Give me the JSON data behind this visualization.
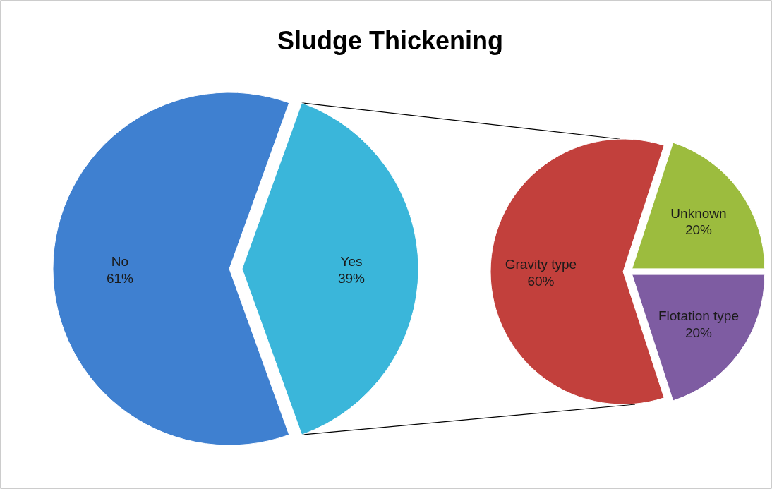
{
  "chart_data": [
    {
      "type": "pie",
      "title": "Sludge Thickening",
      "categories": [
        "No",
        "Yes"
      ],
      "values": [
        61,
        39
      ],
      "value_labels": [
        "61%",
        "39%"
      ],
      "colors": [
        "#3f80d0",
        "#3ab6da"
      ]
    },
    {
      "type": "pie",
      "categories": [
        "Gravity type",
        "Unknown",
        "Flotation type"
      ],
      "values": [
        60,
        20,
        20
      ],
      "value_labels": [
        "60%",
        "20%",
        "20%"
      ],
      "colors": [
        "#c2403c",
        "#9cbc3e",
        "#7e5ca2"
      ]
    }
  ]
}
